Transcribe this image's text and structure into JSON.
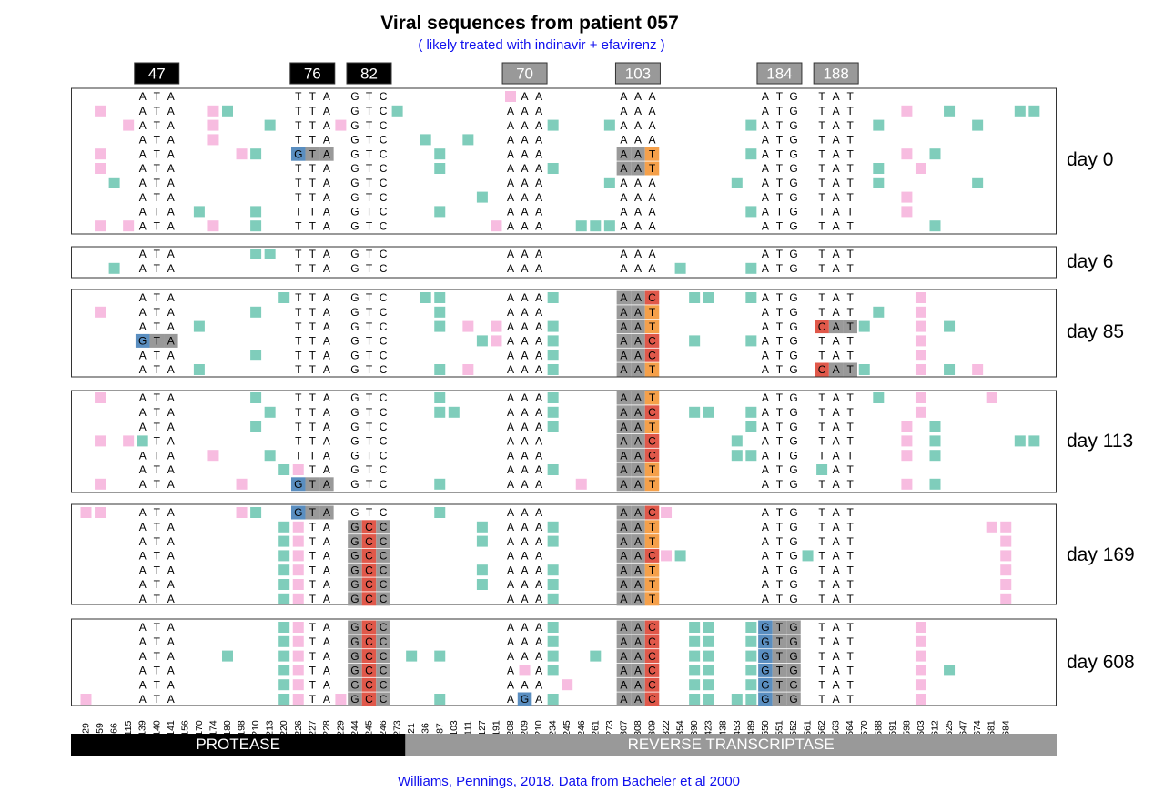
{
  "title": "Viral sequences from patient 057",
  "subtitle": "( likely treated with indinavir + efavirenz )",
  "caption": "Williams, Pennings, 2018. Data from Bacheler et al 2000",
  "colors": {
    "teal": "#7fcdbb",
    "pink": "#f7bce0",
    "gray": "#999999",
    "blue": "#5a8ec0",
    "red": "#e0584a",
    "orange": "#f5a04a",
    "black": "#000000",
    "blue_text": "#1010ee"
  },
  "codon_labels": [
    {
      "label": "47",
      "protein": "protease"
    },
    {
      "label": "76",
      "protein": "protease"
    },
    {
      "label": "82",
      "protein": "protease"
    },
    {
      "label": "70",
      "protein": "reverse-transcriptase"
    },
    {
      "label": "103",
      "protein": "reverse-transcriptase"
    },
    {
      "label": "184",
      "protein": "reverse-transcriptase"
    },
    {
      "label": "188",
      "protein": "reverse-transcriptase"
    }
  ],
  "positions": [
    "29",
    "59",
    "66",
    "115",
    "139",
    "140",
    "141",
    "156",
    "170",
    "174",
    "180",
    "198",
    "210",
    "213",
    "220",
    "226",
    "227",
    "228",
    "229",
    "244",
    "245",
    "246",
    "273",
    "21",
    "36",
    "87",
    "103",
    "111",
    "127",
    "191",
    "208",
    "209",
    "210",
    "234",
    "245",
    "246",
    "261",
    "273",
    "307",
    "308",
    "309",
    "322",
    "354",
    "390",
    "423",
    "438",
    "453",
    "489",
    "550",
    "551",
    "552",
    "561",
    "562",
    "563",
    "564",
    "570",
    "588",
    "591",
    "598",
    "603",
    "612",
    "625",
    "647",
    "674",
    "681",
    "684"
  ],
  "proteins": [
    {
      "name": "PROTEASE"
    },
    {
      "name": "REVERSE TRANSCRIPTASE"
    }
  ],
  "days": [
    {
      "label": "day 0",
      "rows": 10
    },
    {
      "label": "day 6",
      "rows": 2
    },
    {
      "label": "day 85",
      "rows": 6
    },
    {
      "label": "day 113",
      "rows": 7
    },
    {
      "label": "day 169",
      "rows": 7
    },
    {
      "label": "day 608",
      "rows": 6
    }
  ]
}
